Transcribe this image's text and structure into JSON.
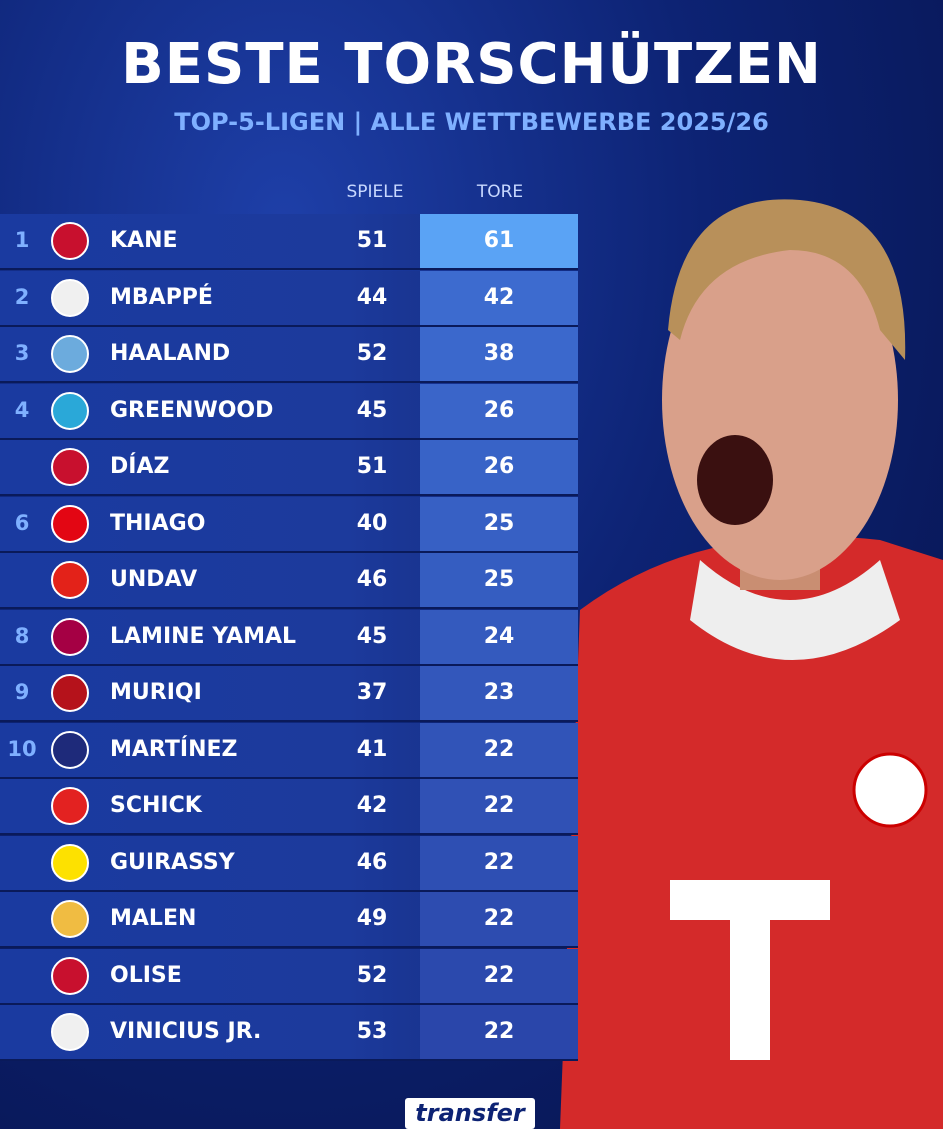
{
  "header": {
    "title": "BESTE TORSCHÜTZEN",
    "subtitle": "TOP-5-LIGEN | ALLE WETTBEWERBE 2025/26"
  },
  "table": {
    "columns": [
      "SPIELE",
      "TORE"
    ],
    "rows": [
      {
        "rank": "1",
        "name": "KANE",
        "games": 51,
        "goals": 61
      },
      {
        "rank": "2",
        "name": "MBAPPÉ",
        "games": 44,
        "goals": 42
      },
      {
        "rank": "3",
        "name": "HAALAND",
        "games": 52,
        "goals": 38
      },
      {
        "rank": "4",
        "name": "GREENWOOD",
        "games": 45,
        "goals": 26
      },
      {
        "name": "DÍAZ",
        "games": 51,
        "goals": 26
      },
      {
        "rank": "6",
        "name": "THIAGO",
        "games": 40,
        "goals": 25
      },
      {
        "name": "UNDAV",
        "games": 46,
        "goals": 25
      },
      {
        "rank": "8",
        "name": "LAMINE YAMAL",
        "games": 45,
        "goals": 24
      },
      {
        "rank": "9",
        "name": "MURIQI",
        "games": 37,
        "goals": 23
      },
      {
        "rank": "10",
        "name": "MARTÍNEZ",
        "games": 41,
        "goals": 22
      },
      {
        "name": "SCHICK",
        "games": 42,
        "goals": 22
      },
      {
        "name": "GUIRASSY",
        "games": 46,
        "goals": 22
      },
      {
        "name": "MALEN",
        "games": 49,
        "goals": 22
      },
      {
        "name": "OLISE",
        "games": 52,
        "goals": 22
      },
      {
        "name": "VINICIUS JR.",
        "games": 53,
        "goals": 22
      }
    ]
  },
  "brand": "transfer"
}
